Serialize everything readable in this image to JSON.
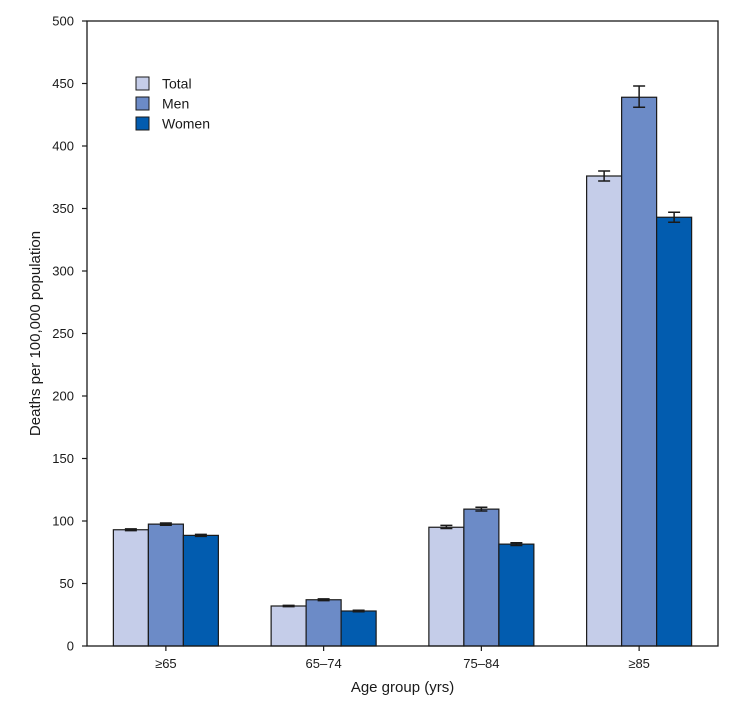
{
  "chart_data": {
    "type": "bar",
    "xlabel": "Age group (yrs)",
    "ylabel": "Deaths per 100,000 population",
    "ylim": [
      0,
      500
    ],
    "yticks": [
      0,
      50,
      100,
      150,
      200,
      250,
      300,
      350,
      400,
      450,
      500
    ],
    "categories": [
      "≥65",
      "65–74",
      "75–84",
      "≥85"
    ],
    "series": [
      {
        "name": "Total",
        "color": "#c5cde9",
        "values": [
          93,
          32,
          95,
          376
        ],
        "ci": [
          [
            92.3,
            93.7
          ],
          [
            31.5,
            32.5
          ],
          [
            94,
            96.5
          ],
          [
            372,
            380
          ]
        ]
      },
      {
        "name": "Men",
        "color": "#6c8bc7",
        "values": [
          97.5,
          37,
          109.5,
          439
        ],
        "ci": [
          [
            96.6,
            98.4
          ],
          [
            36.3,
            37.7
          ],
          [
            108,
            111
          ],
          [
            431,
            448
          ]
        ]
      },
      {
        "name": "Women",
        "color": "#025caf",
        "values": [
          88.5,
          28,
          81.5,
          343
        ],
        "ci": [
          [
            87.7,
            89.3
          ],
          [
            27.4,
            28.6
          ],
          [
            80.4,
            82.6
          ],
          [
            339,
            347
          ]
        ]
      }
    ],
    "legend_position": "top-left",
    "grid": false
  }
}
